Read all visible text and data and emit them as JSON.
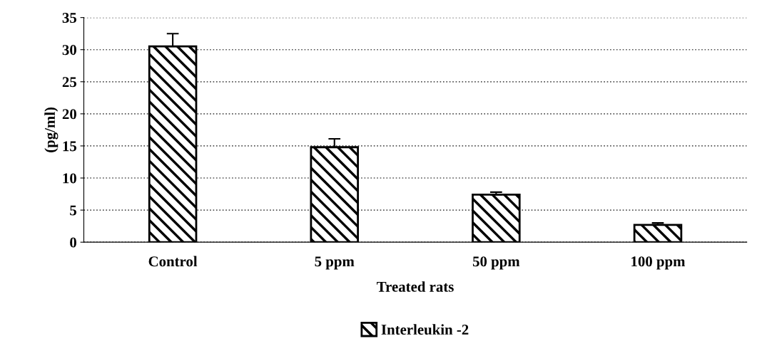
{
  "chart_data": {
    "type": "bar",
    "xlabel": "Treated rats",
    "ylabel": "(pg/ml)",
    "categories": [
      "Control",
      "5 ppm",
      "50 ppm",
      "100 ppm"
    ],
    "series": [
      {
        "name": "Interleukin -2",
        "color": "#000000",
        "values": [
          30.5,
          14.8,
          7.4,
          2.7
        ],
        "errors": [
          2.0,
          1.3,
          0.4,
          0.3
        ]
      }
    ],
    "ylim": [
      0,
      35
    ],
    "yticks": [
      0,
      5,
      10,
      15,
      20,
      25,
      30,
      35
    ],
    "grid": "y",
    "legend": "bottom"
  }
}
